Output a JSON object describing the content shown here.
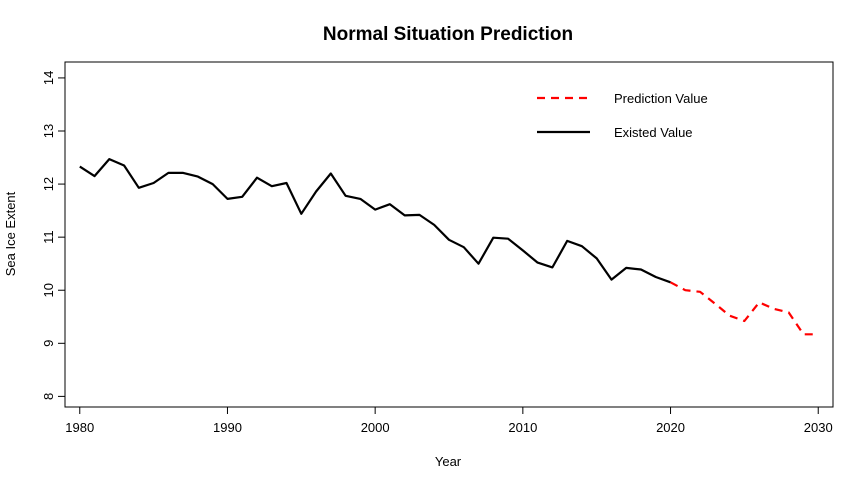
{
  "chart_data": {
    "type": "line",
    "title": "Normal Situation Prediction",
    "xlabel": "Year",
    "ylabel": "Sea Ice Extent",
    "xlim": [
      1979,
      2031
    ],
    "ylim": [
      7.8,
      14.3
    ],
    "xticks": [
      1980,
      1990,
      2000,
      2010,
      2020,
      2030
    ],
    "yticks": [
      8,
      9,
      10,
      11,
      12,
      13,
      14
    ],
    "grid": false,
    "legend_position": "top-right",
    "series": [
      {
        "name": "Prediction Value",
        "color": "#ff0000",
        "style": "dashed",
        "x": [
          2020,
          2021,
          2022,
          2023,
          2024,
          2025,
          2026,
          2027,
          2028,
          2029,
          2030
        ],
        "y": [
          10.15,
          10.0,
          9.97,
          9.75,
          9.52,
          9.42,
          9.77,
          9.65,
          9.58,
          9.17,
          9.17
        ]
      },
      {
        "name": "Existed Value",
        "color": "#000000",
        "style": "solid",
        "x": [
          1980,
          1981,
          1982,
          1983,
          1984,
          1985,
          1986,
          1987,
          1988,
          1989,
          1990,
          1991,
          1992,
          1993,
          1994,
          1995,
          1996,
          1997,
          1998,
          1999,
          2000,
          2001,
          2002,
          2003,
          2004,
          2005,
          2006,
          2007,
          2008,
          2009,
          2010,
          2011,
          2012,
          2013,
          2014,
          2015,
          2016,
          2017,
          2018,
          2019,
          2020
        ],
        "y": [
          12.33,
          12.15,
          12.47,
          12.35,
          11.93,
          12.02,
          12.21,
          12.21,
          12.14,
          12.0,
          11.72,
          11.76,
          12.12,
          11.96,
          12.02,
          11.44,
          11.86,
          12.2,
          11.78,
          11.72,
          11.52,
          11.62,
          11.41,
          11.42,
          11.23,
          10.95,
          10.81,
          10.5,
          10.99,
          10.97,
          10.75,
          10.52,
          10.43,
          10.93,
          10.83,
          10.6,
          10.2,
          10.42,
          10.39,
          10.25,
          10.15
        ]
      }
    ]
  }
}
